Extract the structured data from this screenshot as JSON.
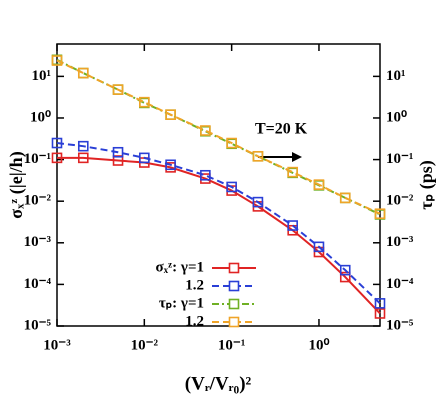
{
  "chart_data": {
    "type": "line",
    "xlabel": "(Vᵣ/Vᵣ₀)²",
    "ylabel": "σₓᶻ (|e|/h)",
    "y2label": "τₚ (ps)",
    "annotation": "T=20 K",
    "log_x": true,
    "log_y": true,
    "xlim": [
      0.001,
      5
    ],
    "ylim": [
      1e-05,
      60
    ],
    "y2lim": [
      1e-05,
      60
    ],
    "xticks": [
      {
        "value": 0.001,
        "label": "10⁻³"
      },
      {
        "value": 0.01,
        "label": "10⁻²"
      },
      {
        "value": 0.1,
        "label": "10⁻¹"
      },
      {
        "value": 1,
        "label": "10⁰"
      }
    ],
    "yticks": [
      {
        "value": 1e-05,
        "label": "10⁻⁵"
      },
      {
        "value": 0.0001,
        "label": "10⁻⁴"
      },
      {
        "value": 0.001,
        "label": "10⁻³"
      },
      {
        "value": 0.01,
        "label": "10⁻²"
      },
      {
        "value": 0.1,
        "label": "10⁻¹"
      },
      {
        "value": 1,
        "label": "10⁰"
      },
      {
        "value": 10,
        "label": "10¹"
      }
    ],
    "y2ticks": [
      {
        "value": 1e-05,
        "label": "10⁻⁵"
      },
      {
        "value": 0.0001,
        "label": "10⁻⁴"
      },
      {
        "value": 0.001,
        "label": "10⁻³"
      },
      {
        "value": 0.01,
        "label": "10⁻²"
      },
      {
        "value": 0.1,
        "label": "10⁻¹"
      },
      {
        "value": 1,
        "label": "10⁰"
      },
      {
        "value": 10,
        "label": "10¹"
      }
    ],
    "x": [
      0.001,
      0.002,
      0.005,
      0.01,
      0.02,
      0.05,
      0.1,
      0.2,
      0.5,
      1,
      2,
      5
    ],
    "series": [
      {
        "name": "σₓᶻ: γ=1",
        "color": "#e02424",
        "dash": "solid",
        "values": [
          0.11,
          0.11,
          0.095,
          0.085,
          0.065,
          0.035,
          0.018,
          0.0075,
          0.002,
          0.0006,
          0.00015,
          2e-05
        ]
      },
      {
        "name": "1.2",
        "color": "#2a3fd6",
        "dash": "dashed",
        "values": [
          0.25,
          0.21,
          0.15,
          0.11,
          0.075,
          0.042,
          0.022,
          0.0095,
          0.0026,
          0.0008,
          0.00022,
          3.5e-05
        ]
      },
      {
        "name": "τₚ: γ=1",
        "color": "#6fb024",
        "dash": "dashdot",
        "axis": "y2",
        "values": [
          25,
          12,
          4.8,
          2.3,
          1.2,
          0.48,
          0.24,
          0.12,
          0.048,
          0.024,
          0.012,
          0.0048
        ]
      },
      {
        "name": "1.2",
        "color": "#f0a428",
        "dash": "dashed",
        "axis": "y2",
        "values": [
          24,
          12,
          4.8,
          2.4,
          1.2,
          0.5,
          0.25,
          0.12,
          0.05,
          0.025,
          0.012,
          0.005
        ]
      }
    ]
  }
}
